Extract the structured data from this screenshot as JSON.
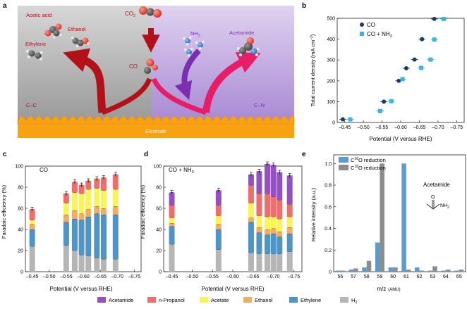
{
  "colors": {
    "H2": "#b5b5b5",
    "Ethylene": "#4f94c7",
    "Ethanol": "#f0ae63",
    "Acetate": "#f9f559",
    "n-Propanol": "#ef6d6a",
    "Acetamide": "#9451c4",
    "arrow_red": "#b3111a",
    "arrow_pink": "#e81d67",
    "arrow_purple": "#7b2fb0",
    "electrode": "#f8a113",
    "co_dark": "#1b3b5c",
    "co_nh3_light": "#3db2e4",
    "c16": "#5a9ccd",
    "c18": "#8c8c8c"
  },
  "panel_a": {
    "letter": "a",
    "labels": {
      "acetic_acid": "Acetic acid",
      "ethanol": "Ethanol",
      "ethylene": "Ethylene",
      "co2": "CO",
      "co2_sub": "2",
      "co": "CO",
      "nh3": "NH",
      "nh3_sub": "3",
      "acetamide": "Acetamide",
      "cc": "C–C",
      "cn": "C–N",
      "electrode": "Electrode"
    }
  },
  "panel_b": {
    "letter": "b",
    "chart_data": {
      "type": "scatter",
      "xlabel": "Potential (V versus RHE)",
      "ylabel_main": "Total current density (mA cm",
      "ylabel_sup": "−2",
      "ylabel_close": ")",
      "xlim": [
        -0.43,
        -0.77
      ],
      "ylim": [
        0,
        500
      ],
      "xticks": [
        -0.45,
        -0.5,
        -0.55,
        -0.6,
        -0.65,
        -0.7,
        -0.75
      ],
      "xtick_labels": [
        "–0.45",
        "–0.50",
        "–0.55",
        "–0.60",
        "–0.65",
        "–0.70",
        "–0.75"
      ],
      "yticks": [
        0,
        100,
        200,
        300,
        400,
        500
      ],
      "series": [
        {
          "name": "CO",
          "marker": "circle",
          "points": [
            [
              -0.445,
              15
            ],
            [
              -0.545,
              55
            ],
            [
              -0.555,
              100
            ],
            [
              -0.595,
              200
            ],
            [
              -0.615,
              260
            ],
            [
              -0.637,
              302
            ],
            [
              -0.657,
              400
            ],
            [
              -0.69,
              497
            ]
          ]
        },
        {
          "name": "CO + NH",
          "name_sub": "3",
          "marker": "square",
          "points": [
            [
              -0.465,
              15
            ],
            [
              -0.545,
              55
            ],
            [
              -0.575,
              102
            ],
            [
              -0.605,
              208
            ],
            [
              -0.655,
              262
            ],
            [
              -0.68,
              302
            ],
            [
              -0.69,
              398
            ],
            [
              -0.715,
              497
            ]
          ]
        }
      ]
    }
  },
  "panel_c": {
    "letter": "c",
    "chart_data": {
      "type": "bar",
      "stacked": true,
      "title": "CO",
      "xlabel": "Potential (V versus RHE)",
      "ylabel": "Faradaic efficiency (%)",
      "xlim": [
        -0.43,
        -0.77
      ],
      "ylim": [
        0,
        100
      ],
      "xticks": [
        -0.45,
        -0.5,
        -0.55,
        -0.6,
        -0.65,
        -0.7,
        -0.75
      ],
      "xtick_labels": [
        "–0.45",
        "–0.50",
        "–0.55",
        "–0.60",
        "–0.65",
        "–0.70",
        "–0.75"
      ],
      "yticks": [
        0,
        20,
        40,
        60,
        80,
        100
      ],
      "series_order": [
        "H2",
        "Ethylene",
        "Ethanol",
        "Acetate",
        "n-Propanol",
        "Acetamide"
      ],
      "bars": [
        {
          "x": -0.45,
          "values": [
            24,
            16,
            5,
            4,
            10,
            0
          ],
          "total": 59
        },
        {
          "x": -0.55,
          "values": [
            25,
            22,
            7,
            11,
            9,
            0
          ],
          "total": 74
        },
        {
          "x": -0.575,
          "values": [
            20,
            30,
            8,
            17,
            10,
            0
          ],
          "total": 85
        },
        {
          "x": -0.595,
          "values": [
            16,
            33,
            6,
            19,
            8,
            0
          ],
          "total": 82
        },
        {
          "x": -0.615,
          "values": [
            15,
            37,
            7,
            19,
            8,
            0
          ],
          "total": 86
        },
        {
          "x": -0.64,
          "values": [
            13,
            42,
            7,
            17,
            9,
            0
          ],
          "total": 88
        },
        {
          "x": -0.66,
          "values": [
            12,
            42,
            6,
            17,
            12,
            0
          ],
          "total": 89
        },
        {
          "x": -0.695,
          "values": [
            12,
            42,
            8,
            16,
            14,
            0
          ],
          "total": 92
        }
      ]
    }
  },
  "panel_d": {
    "letter": "d",
    "chart_data": {
      "type": "bar",
      "stacked": true,
      "title": "CO + NH",
      "title_sub": "3",
      "xlabel": "Potential (V versus RHE)",
      "ylabel": "Faradaic efficiency (%)",
      "xlim": [
        -0.43,
        -0.77
      ],
      "ylim": [
        0,
        100
      ],
      "xticks": [
        -0.45,
        -0.5,
        -0.55,
        -0.6,
        -0.65,
        -0.7,
        -0.75
      ],
      "xtick_labels": [
        "–0.45",
        "–0.50",
        "–0.55",
        "–0.60",
        "–0.65",
        "–0.70",
        "–0.75"
      ],
      "yticks": [
        0,
        20,
        40,
        60,
        80,
        100
      ],
      "series_order": [
        "H2",
        "Ethylene",
        "Ethanol",
        "Acetate",
        "n-Propanol",
        "Acetamide"
      ],
      "bars": [
        {
          "x": -0.45,
          "values": [
            26,
            17,
            3,
            5,
            12,
            12
          ],
          "total": 75
        },
        {
          "x": -0.565,
          "values": [
            21,
            19,
            5,
            8,
            10,
            14
          ],
          "total": 77
        },
        {
          "x": -0.645,
          "values": [
            18,
            29,
            4,
            14,
            17,
            10
          ],
          "total": 92
        },
        {
          "x": -0.665,
          "values": [
            17,
            20,
            5,
            11,
            21,
            21
          ],
          "total": 95
        },
        {
          "x": -0.685,
          "values": [
            17,
            18,
            5,
            12,
            22,
            28
          ],
          "total": 102
        },
        {
          "x": -0.7,
          "values": [
            17,
            19,
            5,
            11,
            19,
            30
          ],
          "total": 101
        },
        {
          "x": -0.715,
          "values": [
            17,
            16,
            5,
            12,
            18,
            26
          ],
          "total": 94
        },
        {
          "x": -0.74,
          "values": [
            19,
            17,
            6,
            10,
            12,
            27
          ],
          "total": 91
        }
      ]
    }
  },
  "panel_e": {
    "letter": "e",
    "chart_data": {
      "type": "bar",
      "xlabel": "m/z",
      "xlabel_unit": "(AMU)",
      "ylabel": "Relative intensity (a.u.)",
      "ylim": [
        0,
        1.08
      ],
      "yticks": [
        0,
        0.2,
        0.4,
        0.6,
        0.8,
        1.0
      ],
      "ytick_labels": [
        "0",
        "0.2",
        "0.4",
        "0.6",
        "0.8",
        "1.0"
      ],
      "categories": [
        "56",
        "57",
        "58",
        "59",
        "60",
        "61",
        "62",
        "63",
        "64",
        "65"
      ],
      "series": [
        {
          "name": "C",
          "name_sup": "16",
          "name_tail": "O reduction",
          "values": [
            0.01,
            0.02,
            0.04,
            0.27,
            0.04,
            1.0,
            0.04,
            0.01,
            0.01,
            0.01
          ]
        },
        {
          "name": "C",
          "name_sup": "18",
          "name_tail": "O reduction",
          "values": [
            0.01,
            0.03,
            0.1,
            1.0,
            0.04,
            0.02,
            0.01,
            0.05,
            0.02,
            0.02
          ]
        }
      ],
      "annotation": "Acetamide",
      "struct_o": "O",
      "struct_nh": "NH",
      "struct_nh_sub": "2"
    }
  },
  "legend": {
    "items": [
      {
        "key": "Acetamide",
        "label": "Acetamide"
      },
      {
        "key": "n-Propanol",
        "label_italic": "n",
        "label": "-Propanol"
      },
      {
        "key": "Acetate",
        "label": "Acetate"
      },
      {
        "key": "Ethanol",
        "label": "Ethanol"
      },
      {
        "key": "Ethylene",
        "label": "Ethylene"
      },
      {
        "key": "H2",
        "label": "H",
        "label_sub": "2"
      }
    ]
  }
}
